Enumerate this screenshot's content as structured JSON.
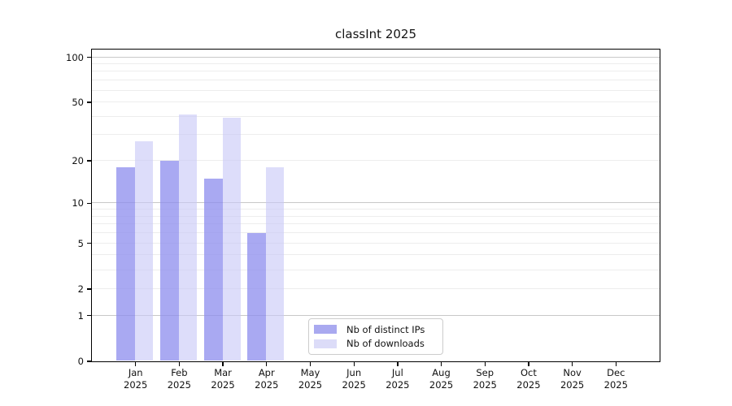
{
  "title": "classInt 2025",
  "chart_data": {
    "type": "bar",
    "title": "classInt 2025",
    "categories": [
      "Jan",
      "Feb",
      "Mar",
      "Apr",
      "May",
      "Jun",
      "Jul",
      "Aug",
      "Sep",
      "Oct",
      "Nov",
      "Dec"
    ],
    "x_tick_year": "2025",
    "series": [
      {
        "name": "Nb of distinct IPs",
        "legend_color": "#a9a9f0",
        "bar_color": "rgba(140,140,238,0.75)",
        "values": [
          18,
          20,
          15,
          6,
          null,
          null,
          null,
          null,
          null,
          null,
          null,
          null
        ]
      },
      {
        "name": "Nb of downloads",
        "legend_color": "#dcdcf8",
        "bar_color": "rgba(200,200,247,0.62)",
        "values": [
          27,
          41,
          39,
          18,
          null,
          null,
          null,
          null,
          null,
          null,
          null,
          null
        ]
      }
    ],
    "y_axis": {
      "scale": "log10(1+x)",
      "tick_labels": [
        0,
        1,
        2,
        5,
        10,
        20,
        50,
        100
      ],
      "major_gridlines": [
        1,
        10,
        100
      ],
      "minor_gridlines": [
        2,
        3,
        4,
        5,
        6,
        7,
        8,
        9,
        20,
        30,
        40,
        50,
        60,
        70,
        80,
        90
      ],
      "ymin": 0
    },
    "grid": true,
    "legend_position": "lower center"
  }
}
